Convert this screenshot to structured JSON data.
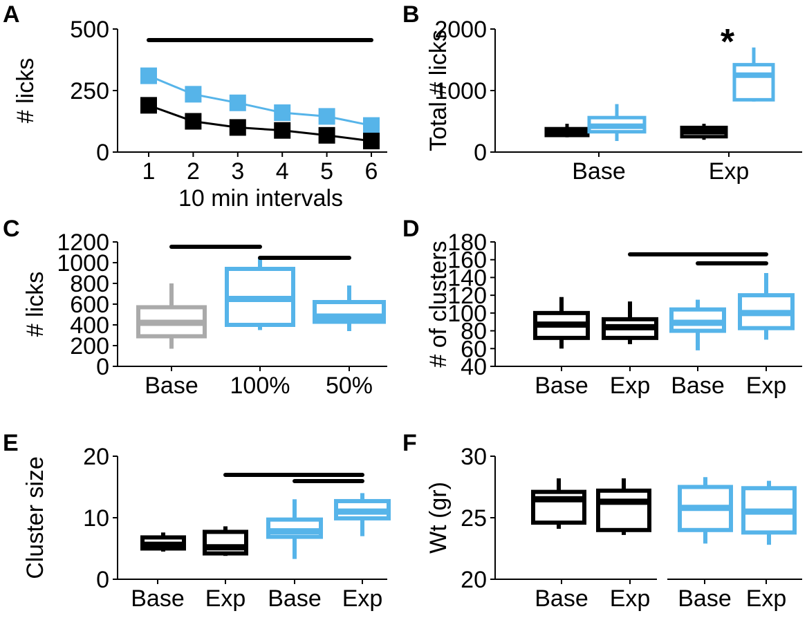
{
  "colors": {
    "ctrl": "#000000",
    "exp": "#56b4e9",
    "base_grey": "#aaaaaa"
  },
  "chart_data": [
    {
      "panel": "A",
      "type": "line",
      "xlabel": "10 min intervals",
      "ylabel": "# licks",
      "x": [
        1,
        2,
        3,
        4,
        5,
        6
      ],
      "ylim": [
        0,
        500
      ],
      "yticks": [
        0,
        250,
        500
      ],
      "series": [
        {
          "values": [
            310,
            235,
            200,
            160,
            145,
            108
          ]
        },
        {
          "values": [
            190,
            125,
            100,
            88,
            68,
            45
          ]
        }
      ],
      "significance_bars": [
        [
          1,
          6
        ]
      ]
    },
    {
      "panel": "B",
      "type": "box",
      "ylabel": "Total # licks",
      "categories": [
        "Base",
        "Exp"
      ],
      "ylim": [
        0,
        2000
      ],
      "yticks": [
        0,
        1000,
        2000
      ],
      "boxes": [
        {
          "category": "Base",
          "color": "ctrl",
          "q1": 270,
          "median": 330,
          "q3": 380,
          "wlo": 240,
          "whi": 460
        },
        {
          "category": "Base",
          "color": "exp",
          "q1": 330,
          "median": 420,
          "q3": 560,
          "wlo": 180,
          "whi": 780
        },
        {
          "category": "Exp",
          "color": "ctrl",
          "q1": 250,
          "median": 330,
          "q3": 400,
          "wlo": 200,
          "whi": 460
        },
        {
          "category": "Exp",
          "color": "exp",
          "q1": 850,
          "median": 1250,
          "q3": 1420,
          "wlo": 820,
          "whi": 1700
        }
      ],
      "annotations": [
        "*"
      ]
    },
    {
      "panel": "C",
      "type": "box",
      "ylabel": "# licks",
      "categories": [
        "Base",
        "100%",
        "50%"
      ],
      "ylim": [
        0,
        1200
      ],
      "yticks": [
        0,
        200,
        400,
        600,
        800,
        1000,
        1200
      ],
      "boxes": [
        {
          "category": "Base",
          "color": "base_grey",
          "q1": 290,
          "median": 420,
          "q3": 570,
          "wlo": 170,
          "whi": 800
        },
        {
          "category": "100%",
          "color": "exp",
          "q1": 400,
          "median": 650,
          "q3": 940,
          "wlo": 350,
          "whi": 1050
        },
        {
          "category": "50%",
          "color": "exp",
          "q1": 430,
          "median": 480,
          "q3": 620,
          "wlo": 340,
          "whi": 780
        }
      ],
      "significance_bars": [
        [
          "Base",
          "100%"
        ],
        [
          "100%",
          "50%"
        ]
      ]
    },
    {
      "panel": "D",
      "type": "box",
      "ylabel": "# of clusters",
      "categories": [
        "Base",
        "Exp",
        "Base",
        "Exp"
      ],
      "ylim": [
        40,
        180
      ],
      "yticks": [
        40,
        60,
        80,
        100,
        120,
        140,
        160,
        180
      ],
      "boxes": [
        {
          "category": "Base",
          "color": "ctrl",
          "q1": 72,
          "median": 87,
          "q3": 100,
          "wlo": 60,
          "whi": 118
        },
        {
          "category": "Exp",
          "color": "ctrl",
          "q1": 72,
          "median": 84,
          "q3": 93,
          "wlo": 65,
          "whi": 113
        },
        {
          "category": "Base",
          "color": "exp",
          "q1": 80,
          "median": 89,
          "q3": 104,
          "wlo": 58,
          "whi": 115
        },
        {
          "category": "Exp",
          "color": "exp",
          "q1": 83,
          "median": 100,
          "q3": 120,
          "wlo": 70,
          "whi": 145
        }
      ],
      "significance_bars": [
        [
          2,
          4
        ],
        [
          3,
          4
        ]
      ]
    },
    {
      "panel": "E",
      "type": "box",
      "ylabel": "Cluster size",
      "categories": [
        "Base",
        "Exp",
        "Base",
        "Exp"
      ],
      "ylim": [
        0,
        20
      ],
      "yticks": [
        0,
        10,
        20
      ],
      "boxes": [
        {
          "category": "Base",
          "color": "ctrl",
          "q1": 5,
          "median": 5.6,
          "q3": 6.8,
          "wlo": 4.5,
          "whi": 7.6
        },
        {
          "category": "Exp",
          "color": "ctrl",
          "q1": 4.2,
          "median": 5.2,
          "q3": 7.7,
          "wlo": 3.8,
          "whi": 8.6
        },
        {
          "category": "Base",
          "color": "exp",
          "q1": 6.9,
          "median": 7.8,
          "q3": 9.7,
          "wlo": 3.3,
          "whi": 13
        },
        {
          "category": "Exp",
          "color": "exp",
          "q1": 9.9,
          "median": 11,
          "q3": 12.7,
          "wlo": 7,
          "whi": 14
        }
      ],
      "significance_bars": [
        [
          2,
          4
        ],
        [
          3,
          4
        ]
      ]
    },
    {
      "panel": "F",
      "type": "box",
      "ylabel": "Wt (gr)",
      "categories": [
        "Base",
        "Exp",
        "Base",
        "Exp"
      ],
      "ylim": [
        20,
        30
      ],
      "yticks": [
        20,
        25,
        30
      ],
      "boxes": [
        {
          "category": "Base",
          "color": "ctrl",
          "q1": 24.6,
          "median": 26.5,
          "q3": 27.1,
          "wlo": 24.1,
          "whi": 28.2
        },
        {
          "category": "Exp",
          "color": "ctrl",
          "q1": 24.0,
          "median": 26.3,
          "q3": 27.2,
          "wlo": 23.6,
          "whi": 28.2
        },
        {
          "category": "Base",
          "color": "exp",
          "q1": 24.0,
          "median": 25.8,
          "q3": 27.5,
          "wlo": 22.9,
          "whi": 28.3
        },
        {
          "category": "Exp",
          "color": "exp",
          "q1": 23.8,
          "median": 25.5,
          "q3": 27.4,
          "wlo": 22.8,
          "whi": 28.0
        }
      ]
    }
  ]
}
